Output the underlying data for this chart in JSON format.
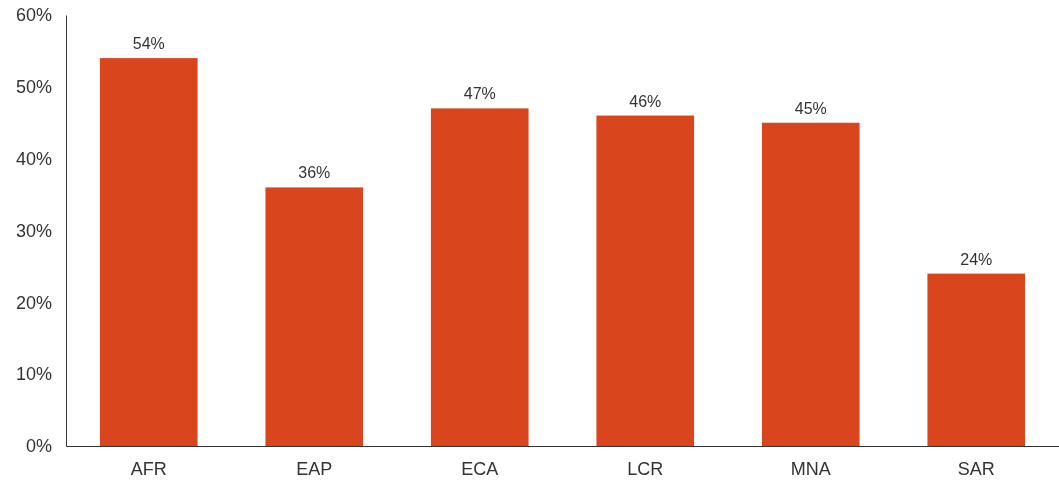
{
  "chart_data": {
    "type": "bar",
    "categories": [
      "AFR",
      "EAP",
      "ECA",
      "LCR",
      "MNA",
      "SAR"
    ],
    "values": [
      54,
      36,
      47,
      46,
      45,
      24
    ],
    "color": "#d9461e",
    "ylim": [
      0,
      60
    ],
    "yticks": [
      {
        "value": 0,
        "label": "0%"
      },
      {
        "value": 10,
        "label": "10%"
      },
      {
        "value": 20,
        "label": "20%"
      },
      {
        "value": 30,
        "label": "30%"
      },
      {
        "value": 40,
        "label": "40%"
      },
      {
        "value": 50,
        "label": "50%"
      },
      {
        "value": 60,
        "label": "60%"
      }
    ],
    "value_labels": [
      "54%",
      "36%",
      "47%",
      "46%",
      "45%",
      "24%"
    ],
    "grid": false
  }
}
